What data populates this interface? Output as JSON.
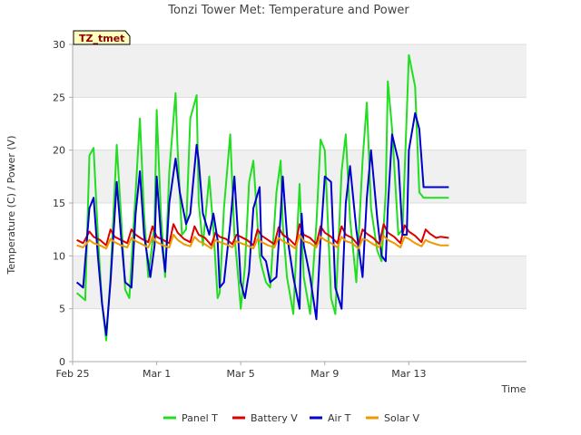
{
  "chart_data": {
    "type": "line",
    "title": "Tonzi Tower Met: Temperature and Power",
    "xlabel": "Time",
    "ylabel": "Temperature (C) / Power (V)",
    "tag": "TZ_tmet",
    "ylim": [
      0,
      30
    ],
    "yticks": [
      "0",
      "5",
      "10",
      "15",
      "20",
      "25",
      "30"
    ],
    "xlim": [
      0,
      21.6
    ],
    "xticks": [
      {
        "label": "Feb 25",
        "value": 0
      },
      {
        "label": "Mar 1",
        "value": 4
      },
      {
        "label": "Mar 5",
        "value": 8
      },
      {
        "label": "Mar 9",
        "value": 12
      },
      {
        "label": "Mar 13",
        "value": 16
      }
    ],
    "grid": true,
    "legend_position": "bottom",
    "series": [
      {
        "name": "Panel T",
        "color": "#22dd22",
        "x": [
          0.2,
          0.6,
          0.8,
          1.0,
          1.2,
          1.4,
          1.6,
          1.8,
          2.1,
          2.3,
          2.5,
          2.7,
          3.0,
          3.2,
          3.4,
          3.6,
          3.9,
          4.0,
          4.2,
          4.4,
          4.6,
          4.9,
          5.0,
          5.2,
          5.4,
          5.6,
          5.9,
          6.0,
          6.2,
          6.5,
          6.7,
          6.9,
          7.0,
          7.2,
          7.5,
          7.7,
          7.9,
          8.0,
          8.2,
          8.4,
          8.6,
          8.9,
          9.0,
          9.2,
          9.4,
          9.7,
          9.9,
          10.0,
          10.2,
          10.5,
          10.8,
          10.9,
          11.0,
          11.3,
          11.6,
          11.8,
          12.0,
          12.3,
          12.5,
          12.8,
          13.0,
          13.2,
          13.5,
          13.8,
          14.0,
          14.2,
          14.5,
          14.7,
          14.9,
          15.0,
          15.2,
          15.5,
          15.7,
          15.9,
          16.0,
          16.3,
          16.5,
          16.7,
          16.9,
          17.0,
          17.2,
          17.5,
          17.8,
          17.9
        ],
        "values": [
          6.5,
          5.8,
          19.5,
          20.2,
          12.0,
          5.5,
          2.0,
          8.0,
          20.5,
          14.0,
          6.8,
          6.0,
          16.0,
          23.0,
          14.0,
          8.0,
          13.0,
          23.8,
          14.0,
          8.0,
          18.0,
          25.4,
          20.0,
          12.0,
          12.5,
          23.0,
          25.2,
          15.0,
          11.0,
          17.5,
          12.5,
          6.0,
          6.5,
          14.5,
          21.5,
          12.0,
          7.5,
          5.0,
          9.0,
          17.0,
          19.0,
          10.0,
          9.0,
          7.5,
          7.0,
          16.0,
          19.0,
          13.0,
          8.0,
          4.5,
          16.8,
          12.0,
          8.0,
          4.5,
          13.0,
          21.0,
          20.0,
          6.0,
          4.5,
          18.0,
          21.5,
          13.5,
          7.5,
          19.0,
          24.5,
          14.5,
          10.5,
          9.5,
          16.0,
          26.5,
          22.0,
          12.0,
          12.5,
          23.5,
          29.0,
          26.0,
          16.0,
          15.5,
          15.5,
          15.5,
          15.5,
          15.5,
          15.5,
          15.5
        ]
      },
      {
        "name": "Battery V",
        "color": "#dd0000",
        "x": [
          0.2,
          0.5,
          0.8,
          1.0,
          1.3,
          1.6,
          1.8,
          2.0,
          2.3,
          2.6,
          2.8,
          3.0,
          3.3,
          3.6,
          3.8,
          4.0,
          4.3,
          4.6,
          4.8,
          5.0,
          5.3,
          5.6,
          5.8,
          6.0,
          6.3,
          6.6,
          6.8,
          7.0,
          7.3,
          7.6,
          7.8,
          8.0,
          8.3,
          8.6,
          8.8,
          9.0,
          9.3,
          9.6,
          9.8,
          10.0,
          10.3,
          10.6,
          10.8,
          11.0,
          11.3,
          11.6,
          11.8,
          12.0,
          12.3,
          12.6,
          12.8,
          13.0,
          13.3,
          13.6,
          13.8,
          14.0,
          14.3,
          14.6,
          14.8,
          15.0,
          15.3,
          15.6,
          15.8,
          16.0,
          16.3,
          16.6,
          16.8,
          17.0,
          17.3,
          17.5,
          17.9
        ],
        "values": [
          11.5,
          11.2,
          12.3,
          11.8,
          11.5,
          11.0,
          12.5,
          11.8,
          11.5,
          11.2,
          12.5,
          12.0,
          11.6,
          11.3,
          12.8,
          11.8,
          11.5,
          11.2,
          13.0,
          12.2,
          11.6,
          11.3,
          12.8,
          12.0,
          11.7,
          11.0,
          12.2,
          11.8,
          11.6,
          11.1,
          12.0,
          11.8,
          11.5,
          11.0,
          12.5,
          11.9,
          11.5,
          11.1,
          12.7,
          12.0,
          11.6,
          11.0,
          13.0,
          12.0,
          11.7,
          11.1,
          12.8,
          12.2,
          11.8,
          11.2,
          12.8,
          12.0,
          11.7,
          11.0,
          12.5,
          12.1,
          11.7,
          11.1,
          13.0,
          12.2,
          11.8,
          11.2,
          12.9,
          12.3,
          11.9,
          11.3,
          12.5,
          12.1,
          11.7,
          11.8,
          11.7
        ]
      },
      {
        "name": "Air T",
        "color": "#0000cc",
        "x": [
          0.2,
          0.5,
          0.8,
          1.0,
          1.2,
          1.4,
          1.6,
          1.8,
          2.1,
          2.3,
          2.5,
          2.8,
          3.0,
          3.2,
          3.4,
          3.7,
          3.9,
          4.0,
          4.2,
          4.4,
          4.6,
          4.9,
          5.1,
          5.4,
          5.6,
          5.9,
          6.0,
          6.2,
          6.5,
          6.7,
          6.9,
          7.0,
          7.2,
          7.5,
          7.7,
          7.9,
          8.0,
          8.2,
          8.4,
          8.6,
          8.9,
          9.0,
          9.2,
          9.4,
          9.7,
          9.9,
          10.0,
          10.2,
          10.5,
          10.8,
          10.9,
          11.0,
          11.3,
          11.6,
          11.8,
          12.0,
          12.3,
          12.5,
          12.8,
          13.0,
          13.2,
          13.5,
          13.8,
          14.0,
          14.2,
          14.5,
          14.7,
          14.9,
          15.0,
          15.2,
          15.5,
          15.7,
          15.9,
          16.0,
          16.3,
          16.5,
          16.7,
          16.9,
          17.0,
          17.2,
          17.5,
          17.8,
          17.9
        ],
        "values": [
          7.5,
          7.0,
          14.5,
          15.5,
          10.0,
          5.5,
          2.5,
          7.5,
          17.0,
          12.0,
          7.5,
          7.0,
          14.0,
          18.0,
          12.0,
          8.0,
          11.0,
          17.5,
          12.0,
          8.5,
          15.0,
          19.2,
          16.0,
          13.0,
          14.0,
          20.5,
          19.0,
          14.0,
          12.0,
          14.0,
          11.5,
          7.0,
          7.5,
          13.0,
          17.5,
          11.0,
          7.5,
          6.0,
          8.5,
          14.5,
          16.5,
          10.0,
          9.5,
          7.5,
          8.0,
          14.0,
          17.5,
          12.0,
          8.0,
          5.0,
          14.0,
          11.0,
          8.0,
          4.0,
          11.5,
          17.5,
          17.0,
          7.0,
          5.0,
          15.0,
          18.5,
          12.5,
          8.0,
          15.5,
          20.0,
          13.5,
          10.0,
          9.5,
          14.5,
          21.5,
          19.0,
          12.0,
          12.0,
          20.0,
          23.5,
          22.0,
          16.5,
          16.5,
          16.5,
          16.5,
          16.5,
          16.5,
          16.5
        ]
      },
      {
        "name": "Solar V",
        "color": "#ee9900",
        "x": [
          0.2,
          0.5,
          0.8,
          1.0,
          1.3,
          1.6,
          1.8,
          2.0,
          2.3,
          2.6,
          2.8,
          3.0,
          3.3,
          3.6,
          3.8,
          4.0,
          4.3,
          4.6,
          4.8,
          5.0,
          5.3,
          5.6,
          5.8,
          6.0,
          6.3,
          6.6,
          6.8,
          7.0,
          7.3,
          7.6,
          7.8,
          8.0,
          8.3,
          8.6,
          8.8,
          9.0,
          9.3,
          9.6,
          9.8,
          10.0,
          10.3,
          10.6,
          10.8,
          11.0,
          11.3,
          11.6,
          11.8,
          12.0,
          12.3,
          12.6,
          12.8,
          13.0,
          13.3,
          13.6,
          13.8,
          14.0,
          14.3,
          14.6,
          14.8,
          15.0,
          15.3,
          15.6,
          15.8,
          16.0,
          16.3,
          16.6,
          16.8,
          17.0,
          17.3,
          17.5,
          17.9
        ],
        "values": [
          11.0,
          10.8,
          11.5,
          11.2,
          11.0,
          10.7,
          11.6,
          11.3,
          11.0,
          10.8,
          11.7,
          11.4,
          11.1,
          10.8,
          11.8,
          11.3,
          11.0,
          10.8,
          12.0,
          11.5,
          11.1,
          10.9,
          11.8,
          11.4,
          11.1,
          10.7,
          11.5,
          11.3,
          11.1,
          10.8,
          11.4,
          11.2,
          11.0,
          10.7,
          11.6,
          11.3,
          11.0,
          10.8,
          11.7,
          11.4,
          11.1,
          10.7,
          12.0,
          11.4,
          11.2,
          10.8,
          11.8,
          11.5,
          11.2,
          10.8,
          11.8,
          11.4,
          11.2,
          10.7,
          11.6,
          11.5,
          11.1,
          10.8,
          11.9,
          11.5,
          11.2,
          10.8,
          11.8,
          11.6,
          11.2,
          10.9,
          11.5,
          11.3,
          11.1,
          11.0,
          11.0
        ]
      }
    ]
  }
}
